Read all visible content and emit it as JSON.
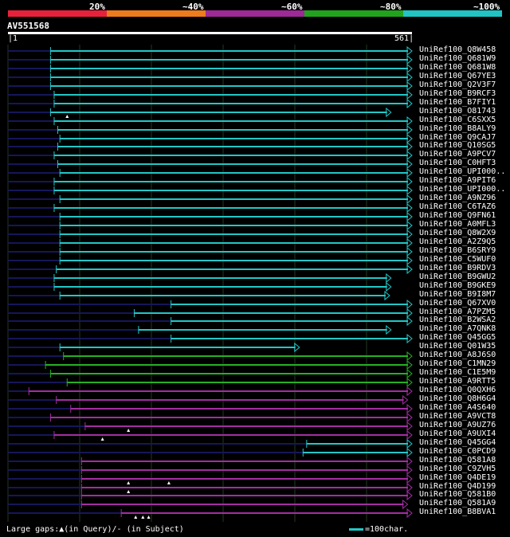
{
  "scale": {
    "labels": [
      "20%",
      "~40%",
      "~60%",
      "~80%",
      "~100%"
    ],
    "colors": [
      "#e8213a",
      "#ee7b1e",
      "#9d2a96",
      "#22a31e",
      "#21c3c3"
    ]
  },
  "query": {
    "name": "AV551568",
    "start": "1",
    "end": "561"
  },
  "legend": {
    "gaps": "Large gaps:",
    "query_gap": "(in Query)",
    "subject_gap": "(in Subject)",
    "unit": "=100char."
  },
  "colors": {
    "cyan": "#22c7c7",
    "green": "#25b024",
    "magenta": "#a32ea3",
    "dim": "#16165a",
    "grid": "#1f3a1f"
  },
  "hits": [
    {
      "name": "UniRef100_Q8W458",
      "start": 60,
      "end": 561,
      "color": "cyan"
    },
    {
      "name": "UniRef100_Q681W9",
      "start": 60,
      "end": 561,
      "color": "cyan"
    },
    {
      "name": "UniRef100_Q681W8",
      "start": 60,
      "end": 561,
      "color": "cyan"
    },
    {
      "name": "UniRef100_Q67YE3",
      "start": 60,
      "end": 561,
      "color": "cyan"
    },
    {
      "name": "UniRef100_Q2V3F7",
      "start": 60,
      "end": 561,
      "color": "cyan"
    },
    {
      "name": "UniRef100_B9RCF3",
      "start": 65,
      "end": 561,
      "color": "cyan"
    },
    {
      "name": "UniRef100_B7FIY1",
      "start": 65,
      "end": 561,
      "color": "cyan"
    },
    {
      "name": "UniRef100_O81743",
      "start": 60,
      "end": 532,
      "color": "cyan",
      "markers": [
        83
      ]
    },
    {
      "name": "UniRef100_C6SXX5",
      "start": 65,
      "end": 561,
      "color": "cyan"
    },
    {
      "name": "UniRef100_B8ALY9",
      "start": 70,
      "end": 561,
      "color": "cyan"
    },
    {
      "name": "UniRef100_Q9CAJ7",
      "start": 73,
      "end": 561,
      "color": "cyan"
    },
    {
      "name": "UniRef100_Q10SG5",
      "start": 70,
      "end": 561,
      "color": "cyan"
    },
    {
      "name": "UniRef100_A9PCV7",
      "start": 65,
      "end": 561,
      "color": "cyan"
    },
    {
      "name": "UniRef100_C0HFT3",
      "start": 70,
      "end": 561,
      "color": "cyan"
    },
    {
      "name": "UniRef100_UPI000..",
      "start": 73,
      "end": 561,
      "color": "cyan"
    },
    {
      "name": "UniRef100_A9PIT6",
      "start": 65,
      "end": 561,
      "color": "cyan"
    },
    {
      "name": "UniRef100_UPI000..",
      "start": 65,
      "end": 561,
      "color": "cyan"
    },
    {
      "name": "UniRef100_A9NZ96",
      "start": 73,
      "end": 561,
      "color": "cyan"
    },
    {
      "name": "UniRef100_C6TAZ6",
      "start": 65,
      "end": 561,
      "color": "cyan"
    },
    {
      "name": "UniRef100_Q9FN61",
      "start": 73,
      "end": 561,
      "color": "cyan"
    },
    {
      "name": "UniRef100_A0MFL3",
      "start": 73,
      "end": 561,
      "color": "cyan"
    },
    {
      "name": "UniRef100_Q8W2X9",
      "start": 73,
      "end": 561,
      "color": "cyan"
    },
    {
      "name": "UniRef100_A2Z9Q5",
      "start": 73,
      "end": 561,
      "color": "cyan"
    },
    {
      "name": "UniRef100_B6SRY9",
      "start": 73,
      "end": 561,
      "color": "cyan"
    },
    {
      "name": "UniRef100_C5WUF0",
      "start": 73,
      "end": 561,
      "color": "cyan"
    },
    {
      "name": "UniRef100_B9RDV3",
      "start": 68,
      "end": 561,
      "color": "cyan"
    },
    {
      "name": "UniRef100_B9GWU2",
      "start": 65,
      "end": 532,
      "color": "cyan"
    },
    {
      "name": "UniRef100_B9GKE9",
      "start": 65,
      "end": 532,
      "color": "cyan"
    },
    {
      "name": "UniRef100_B9I8M7",
      "start": 73,
      "end": 530,
      "color": "cyan"
    },
    {
      "name": "UniRef100_Q67XV0",
      "start": 227,
      "end": 561,
      "color": "cyan"
    },
    {
      "name": "UniRef100_A7PZM5",
      "start": 176,
      "end": 561,
      "color": "cyan"
    },
    {
      "name": "UniRef100_B2WSA2",
      "start": 227,
      "end": 561,
      "color": "cyan"
    },
    {
      "name": "UniRef100_A7QNK8",
      "start": 182,
      "end": 532,
      "color": "cyan"
    },
    {
      "name": "UniRef100_Q45GG5",
      "start": 227,
      "end": 561,
      "color": "cyan"
    },
    {
      "name": "UniRef100_Q01W35",
      "start": 73,
      "end": 405,
      "color": "cyan"
    },
    {
      "name": "UniRef100_A8J6S0",
      "start": 78,
      "end": 561,
      "color": "green"
    },
    {
      "name": "UniRef100_C1MN29",
      "start": 53,
      "end": 561,
      "color": "green"
    },
    {
      "name": "UniRef100_C1E5M9",
      "start": 60,
      "end": 561,
      "color": "green"
    },
    {
      "name": "UniRef100_A9RTT5",
      "start": 83,
      "end": 561,
      "color": "green"
    },
    {
      "name": "UniRef100_Q0QXH6",
      "start": 30,
      "end": 561,
      "color": "magenta"
    },
    {
      "name": "UniRef100_Q8H6G4",
      "start": 68,
      "end": 555,
      "color": "magenta"
    },
    {
      "name": "UniRef100_A4S640",
      "start": 88,
      "end": 561,
      "color": "magenta"
    },
    {
      "name": "UniRef100_A9VCT8",
      "start": 60,
      "end": 561,
      "color": "magenta"
    },
    {
      "name": "UniRef100_A9UZ76",
      "start": 108,
      "end": 561,
      "color": "magenta",
      "markers": [
        168
      ]
    },
    {
      "name": "UniRef100_A9UXI4",
      "start": 65,
      "end": 561,
      "color": "magenta",
      "markers": [
        132
      ]
    },
    {
      "name": "UniRef100_Q45GG4",
      "start": 415,
      "end": 561,
      "color": "cyan"
    },
    {
      "name": "UniRef100_C0PCD9",
      "start": 410,
      "end": 561,
      "color": "cyan"
    },
    {
      "name": "UniRef100_Q581A8",
      "start": 103,
      "end": 561,
      "color": "magenta"
    },
    {
      "name": "UniRef100_C9ZVH5",
      "start": 103,
      "end": 561,
      "color": "magenta"
    },
    {
      "name": "UniRef100_Q4DE19",
      "start": 103,
      "end": 561,
      "color": "magenta",
      "markers": [
        168,
        224
      ]
    },
    {
      "name": "UniRef100_Q4D199",
      "start": 103,
      "end": 561,
      "color": "magenta",
      "markers": [
        168
      ]
    },
    {
      "name": "UniRef100_Q581B0",
      "start": 103,
      "end": 561,
      "color": "magenta"
    },
    {
      "name": "UniRef100_Q581A9",
      "start": 103,
      "end": 555,
      "color": "magenta"
    },
    {
      "name": "UniRef100_B8BVA1",
      "start": 158,
      "end": 561,
      "color": "magenta",
      "markers": [
        178,
        188,
        196
      ]
    }
  ]
}
